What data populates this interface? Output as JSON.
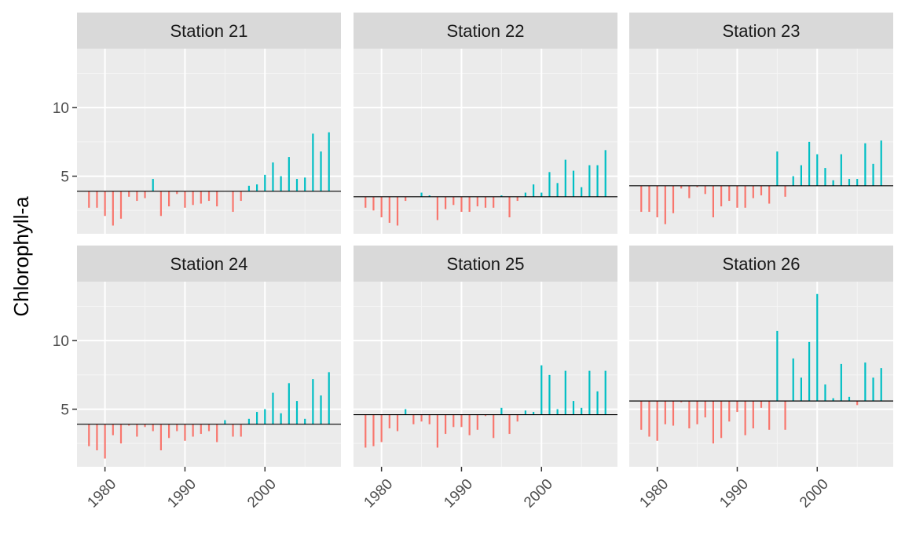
{
  "chart_data": {
    "type": "bar",
    "ylabel": "Chlorophyll-a",
    "xlabel": "",
    "x_ticks": [
      1980,
      1990,
      2000
    ],
    "y_ticks": [
      5,
      10
    ],
    "xlim": [
      1976.5,
      2009.5
    ],
    "ylim": [
      0.8,
      14.3
    ],
    "colors": {
      "below": "#F8766D",
      "above": "#00BFC4",
      "baseline": "#000000"
    },
    "panels": [
      {
        "title": "Station 21",
        "baseline": 3.9,
        "years": [
          1978,
          1979,
          1980,
          1981,
          1982,
          1983,
          1984,
          1985,
          1986,
          1987,
          1988,
          1989,
          1990,
          1991,
          1992,
          1993,
          1994,
          1995,
          1996,
          1997,
          1998,
          1999,
          2000,
          2001,
          2002,
          2003,
          2004,
          2005,
          2006,
          2007,
          2008
        ],
        "values": [
          2.7,
          2.7,
          2.1,
          1.4,
          1.9,
          3.5,
          3.2,
          3.4,
          4.8,
          2.1,
          2.8,
          3.7,
          2.7,
          2.9,
          3.0,
          3.2,
          2.8,
          3.9,
          2.4,
          3.2,
          4.3,
          4.4,
          5.1,
          6.0,
          5.0,
          6.4,
          4.8,
          4.9,
          8.1,
          6.8,
          8.2
        ]
      },
      {
        "title": "Station 22",
        "baseline": 3.5,
        "years": [
          1978,
          1979,
          1980,
          1981,
          1982,
          1983,
          1984,
          1985,
          1986,
          1987,
          1988,
          1989,
          1990,
          1991,
          1992,
          1993,
          1994,
          1995,
          1996,
          1997,
          1998,
          1999,
          2000,
          2001,
          2002,
          2003,
          2004,
          2005,
          2006,
          2007,
          2008
        ],
        "values": [
          2.7,
          2.5,
          2.0,
          1.6,
          1.4,
          3.2,
          3.5,
          3.8,
          3.6,
          1.8,
          2.6,
          2.9,
          2.4,
          2.4,
          2.8,
          2.7,
          2.7,
          3.6,
          2.0,
          3.2,
          3.8,
          4.4,
          3.8,
          5.3,
          4.5,
          6.2,
          5.4,
          4.2,
          5.8,
          5.8,
          6.9
        ]
      },
      {
        "title": "Station 23",
        "baseline": 4.3,
        "years": [
          1978,
          1979,
          1980,
          1981,
          1982,
          1983,
          1984,
          1985,
          1986,
          1987,
          1988,
          1989,
          1990,
          1991,
          1992,
          1993,
          1994,
          1995,
          1996,
          1997,
          1998,
          1999,
          2000,
          2001,
          2002,
          2003,
          2004,
          2005,
          2006,
          2007,
          2008
        ],
        "values": [
          2.4,
          2.4,
          2.0,
          1.5,
          2.3,
          4.1,
          3.4,
          4.2,
          3.7,
          2.0,
          2.8,
          3.2,
          2.7,
          2.7,
          3.4,
          3.6,
          3.0,
          6.8,
          3.5,
          5.0,
          5.8,
          7.5,
          6.6,
          5.6,
          4.7,
          6.6,
          4.8,
          4.8,
          7.4,
          5.9,
          7.6
        ]
      },
      {
        "title": "Station 24",
        "baseline": 3.9,
        "years": [
          1978,
          1979,
          1980,
          1981,
          1982,
          1983,
          1984,
          1985,
          1986,
          1987,
          1988,
          1989,
          1990,
          1991,
          1992,
          1993,
          1994,
          1995,
          1996,
          1997,
          1998,
          1999,
          2000,
          2001,
          2002,
          2003,
          2004,
          2005,
          2006,
          2007,
          2008
        ],
        "values": [
          2.3,
          2.0,
          1.4,
          3.1,
          2.5,
          3.8,
          3.0,
          3.7,
          3.4,
          2.0,
          2.9,
          3.4,
          2.7,
          3.0,
          3.2,
          3.4,
          2.6,
          4.2,
          3.0,
          3.0,
          4.3,
          4.8,
          5.0,
          6.2,
          4.7,
          6.9,
          5.6,
          4.3,
          7.2,
          6.0,
          7.7
        ]
      },
      {
        "title": "Station 25",
        "baseline": 4.6,
        "years": [
          1978,
          1979,
          1980,
          1981,
          1982,
          1983,
          1984,
          1985,
          1986,
          1987,
          1988,
          1989,
          1990,
          1991,
          1992,
          1993,
          1994,
          1995,
          1996,
          1997,
          1998,
          1999,
          2000,
          2001,
          2002,
          2003,
          2004,
          2005,
          2006,
          2007,
          2008
        ],
        "values": [
          2.2,
          2.3,
          2.6,
          3.6,
          3.4,
          5.0,
          3.9,
          4.1,
          3.9,
          2.2,
          3.2,
          3.7,
          3.7,
          3.1,
          3.5,
          4.5,
          2.9,
          5.1,
          3.2,
          4.1,
          4.9,
          4.8,
          8.2,
          7.5,
          5.0,
          7.8,
          5.6,
          5.1,
          7.8,
          6.3,
          7.8
        ]
      },
      {
        "title": "Station 26",
        "baseline": 5.6,
        "years": [
          1978,
          1979,
          1980,
          1981,
          1982,
          1983,
          1984,
          1985,
          1986,
          1987,
          1988,
          1989,
          1990,
          1991,
          1992,
          1993,
          1994,
          1995,
          1996,
          1997,
          1998,
          1999,
          2000,
          2001,
          2002,
          2003,
          2004,
          2005,
          2006,
          2007,
          2008
        ],
        "values": [
          3.5,
          3.0,
          2.7,
          3.9,
          3.8,
          5.5,
          3.6,
          3.9,
          4.4,
          2.5,
          2.9,
          4.1,
          4.8,
          3.1,
          3.6,
          5.1,
          3.5,
          10.7,
          3.5,
          8.7,
          7.3,
          9.9,
          13.4,
          6.8,
          5.8,
          8.3,
          5.9,
          5.3,
          8.4,
          7.3,
          8.0
        ]
      }
    ]
  }
}
